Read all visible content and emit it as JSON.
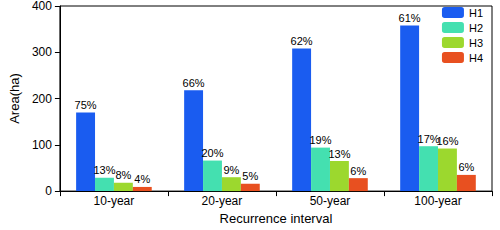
{
  "chart_data": {
    "type": "bar",
    "x_label": "Recurrence interval",
    "y_label": "Area(ha)",
    "categories": [
      "10-year",
      "20-year",
      "50-year",
      "100-year"
    ],
    "series": [
      {
        "name": "H1",
        "color": "#1a5cf0",
        "values": [
          170,
          218,
          308,
          358
        ],
        "percent_labels": [
          "75%",
          "66%",
          "62%",
          "61%"
        ]
      },
      {
        "name": "H2",
        "color": "#44e0b0",
        "values": [
          29,
          66,
          94,
          97
        ],
        "percent_labels": [
          "13%",
          "20%",
          "19%",
          "17%"
        ]
      },
      {
        "name": "H3",
        "color": "#9cd82e",
        "values": [
          18,
          30,
          65,
          92
        ],
        "percent_labels": [
          "8%",
          "9%",
          "13%",
          "16%"
        ]
      },
      {
        "name": "H4",
        "color": "#e85020",
        "values": [
          9,
          16,
          28,
          35
        ],
        "percent_labels": [
          "4%",
          "5%",
          "6%",
          "6%"
        ]
      }
    ],
    "ylim": [
      0,
      400
    ],
    "yticks": [
      0,
      100,
      200,
      300,
      400
    ],
    "grid": false,
    "legend": "upper right"
  }
}
